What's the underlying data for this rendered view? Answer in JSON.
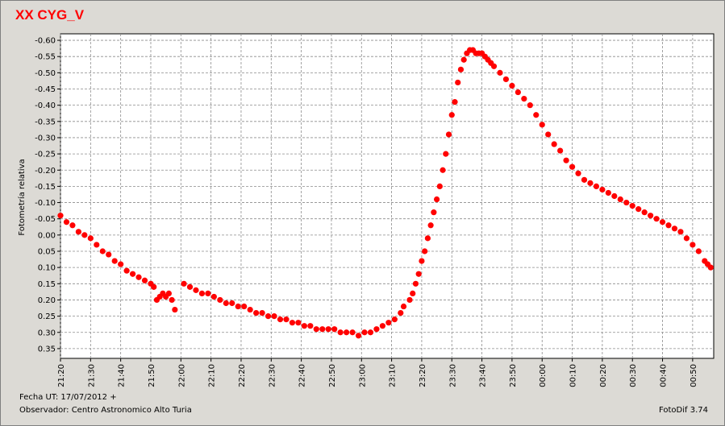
{
  "title": "XX CYG_V",
  "footer": {
    "date_label": "Fecha UT:",
    "date_value": "17/07/2012 +",
    "observer_label": "Observador:",
    "observer_value": "Centro Astronomico Alto Turia",
    "software": "FotoDif 3.74"
  },
  "chart_data": {
    "type": "scatter",
    "title": "XX CYG_V",
    "ylabel": "Fotometría relativa",
    "xlabel": "",
    "y_inverted": true,
    "ylim": [
      -0.62,
      0.38
    ],
    "y_ticks": [
      -0.6,
      -0.55,
      -0.5,
      -0.45,
      -0.4,
      -0.35,
      -0.3,
      -0.25,
      -0.2,
      -0.15,
      -0.1,
      -0.05,
      0.0,
      0.05,
      0.1,
      0.15,
      0.2,
      0.25,
      0.3,
      0.35
    ],
    "y_tick_labels": [
      "-0.60",
      "-0.55",
      "-0.50",
      "-0.45",
      "-0.40",
      "-0.35",
      "-0.30",
      "-0.25",
      "-0.20",
      "-0.15",
      "-0.10",
      "-0.05",
      "0.00",
      "0.05",
      "0.10",
      "0.15",
      "0.20",
      "0.25",
      "0.30",
      "0.35"
    ],
    "x_tick_labels": [
      "21:20",
      "21:30",
      "21:40",
      "21:50",
      "22:00",
      "22:10",
      "22:20",
      "22:30",
      "22:40",
      "22:50",
      "23:00",
      "23:10",
      "23:20",
      "23:30",
      "23:40",
      "23:50",
      "00:00",
      "00:10",
      "00:20",
      "00:30",
      "00:40",
      "00:50"
    ],
    "xlim": [
      "21:20",
      "00:57"
    ],
    "grid": true,
    "marker_color": "#ff0000",
    "series": [
      {
        "name": "",
        "x": [
          "21:20",
          "21:22",
          "21:24",
          "21:26",
          "21:28",
          "21:30",
          "21:32",
          "21:34",
          "21:36",
          "21:38",
          "21:40",
          "21:42",
          "21:44",
          "21:46",
          "21:48",
          "21:50",
          "21:51",
          "21:52",
          "21:53",
          "21:54",
          "21:55",
          "21:56",
          "21:57",
          "21:58",
          "22:01",
          "22:03",
          "22:05",
          "22:07",
          "22:09",
          "22:11",
          "22:13",
          "22:15",
          "22:17",
          "22:19",
          "22:21",
          "22:23",
          "22:25",
          "22:27",
          "22:29",
          "22:31",
          "22:33",
          "22:35",
          "22:37",
          "22:39",
          "22:41",
          "22:43",
          "22:45",
          "22:47",
          "22:49",
          "22:51",
          "22:53",
          "22:55",
          "22:57",
          "22:59",
          "23:01",
          "23:03",
          "23:05",
          "23:07",
          "23:09",
          "23:11",
          "23:13",
          "23:14",
          "23:16",
          "23:17",
          "23:18",
          "23:19",
          "23:20",
          "23:21",
          "23:22",
          "23:23",
          "23:24",
          "23:25",
          "23:26",
          "23:27",
          "23:28",
          "23:29",
          "23:30",
          "23:31",
          "23:32",
          "23:33",
          "23:34",
          "23:35",
          "23:36",
          "23:37",
          "23:38",
          "23:39",
          "23:40",
          "23:41",
          "23:42",
          "23:43",
          "23:44",
          "23:46",
          "23:48",
          "23:50",
          "23:52",
          "23:54",
          "23:56",
          "23:58",
          "00:00",
          "00:02",
          "00:04",
          "00:06",
          "00:08",
          "00:10",
          "00:12",
          "00:14",
          "00:16",
          "00:18",
          "00:20",
          "00:22",
          "00:24",
          "00:26",
          "00:28",
          "00:30",
          "00:32",
          "00:34",
          "00:36",
          "00:38",
          "00:40",
          "00:42",
          "00:44",
          "00:46",
          "00:48",
          "00:50",
          "00:52",
          "00:54",
          "00:55",
          "00:56"
        ],
        "y": [
          -0.06,
          -0.04,
          -0.03,
          -0.01,
          0.0,
          0.01,
          0.03,
          0.05,
          0.06,
          0.08,
          0.09,
          0.11,
          0.12,
          0.13,
          0.14,
          0.15,
          0.16,
          0.2,
          0.19,
          0.18,
          0.19,
          0.18,
          0.2,
          0.23,
          0.15,
          0.16,
          0.17,
          0.18,
          0.18,
          0.19,
          0.2,
          0.21,
          0.21,
          0.22,
          0.22,
          0.23,
          0.24,
          0.24,
          0.25,
          0.25,
          0.26,
          0.26,
          0.27,
          0.27,
          0.28,
          0.28,
          0.29,
          0.29,
          0.29,
          0.29,
          0.3,
          0.3,
          0.3,
          0.31,
          0.3,
          0.3,
          0.29,
          0.28,
          0.27,
          0.26,
          0.24,
          0.22,
          0.2,
          0.18,
          0.15,
          0.12,
          0.08,
          0.05,
          0.01,
          -0.03,
          -0.07,
          -0.11,
          -0.15,
          -0.2,
          -0.25,
          -0.31,
          -0.37,
          -0.41,
          -0.47,
          -0.51,
          -0.54,
          -0.56,
          -0.57,
          -0.57,
          -0.56,
          -0.56,
          -0.56,
          -0.55,
          -0.54,
          -0.53,
          -0.52,
          -0.5,
          -0.48,
          -0.46,
          -0.44,
          -0.42,
          -0.4,
          -0.37,
          -0.34,
          -0.31,
          -0.28,
          -0.26,
          -0.23,
          -0.21,
          -0.19,
          -0.17,
          -0.16,
          -0.15,
          -0.14,
          -0.13,
          -0.12,
          -0.11,
          -0.1,
          -0.09,
          -0.08,
          -0.07,
          -0.06,
          -0.05,
          -0.04,
          -0.03,
          -0.02,
          -0.01,
          0.01,
          0.03,
          0.05,
          0.08,
          0.09,
          0.1
        ]
      }
    ]
  }
}
